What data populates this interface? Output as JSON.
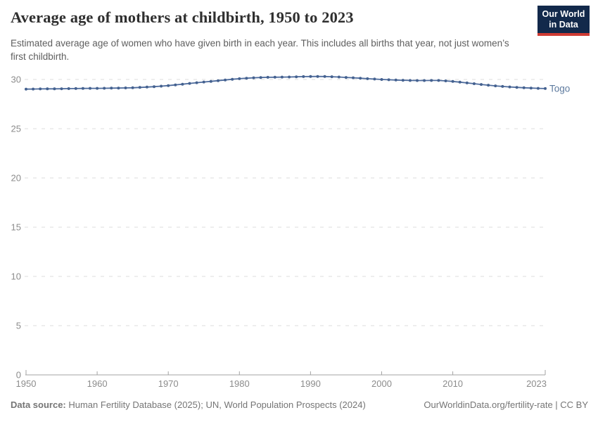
{
  "header": {
    "title": "Average age of mothers at childbirth, 1950 to 2023",
    "subtitle": "Estimated average age of women who have given birth in each year. This includes all births that year, not just women’s first childbirth.",
    "logo": {
      "line1": "Our World",
      "line2": "in Data",
      "bg_color": "#12294b",
      "accent_color": "#cf3b33"
    }
  },
  "chart_data": {
    "type": "line",
    "title": "Average age of mothers at childbirth, 1950 to 2023",
    "xlabel": "",
    "ylabel": "",
    "ylim": [
      0,
      30
    ],
    "yticks": [
      0,
      5,
      10,
      15,
      20,
      25,
      30
    ],
    "xticks": [
      1950,
      1960,
      1970,
      1980,
      1990,
      2000,
      2010,
      2023
    ],
    "grid": true,
    "legend_position": "end-of-line",
    "years": [
      1950,
      1951,
      1952,
      1953,
      1954,
      1955,
      1956,
      1957,
      1958,
      1959,
      1960,
      1961,
      1962,
      1963,
      1964,
      1965,
      1966,
      1967,
      1968,
      1969,
      1970,
      1971,
      1972,
      1973,
      1974,
      1975,
      1976,
      1977,
      1978,
      1979,
      1980,
      1981,
      1982,
      1983,
      1984,
      1985,
      1986,
      1987,
      1988,
      1989,
      1990,
      1991,
      1992,
      1993,
      1994,
      1995,
      1996,
      1997,
      1998,
      1999,
      2000,
      2001,
      2002,
      2003,
      2004,
      2005,
      2006,
      2007,
      2008,
      2009,
      2010,
      2011,
      2012,
      2013,
      2014,
      2015,
      2016,
      2017,
      2018,
      2019,
      2020,
      2021,
      2022,
      2023
    ],
    "series": [
      {
        "name": "Togo",
        "color": "#4C6A9C",
        "marker_color": "#44618f",
        "values": [
          29.02,
          29.03,
          29.04,
          29.05,
          29.05,
          29.06,
          29.07,
          29.08,
          29.09,
          29.1,
          29.1,
          29.11,
          29.12,
          29.13,
          29.14,
          29.16,
          29.19,
          29.23,
          29.27,
          29.32,
          29.38,
          29.45,
          29.52,
          29.6,
          29.67,
          29.74,
          29.81,
          29.88,
          29.95,
          30.02,
          30.08,
          30.13,
          30.17,
          30.2,
          30.22,
          30.23,
          30.24,
          30.25,
          30.27,
          30.29,
          30.3,
          30.31,
          30.3,
          30.28,
          30.25,
          30.21,
          30.17,
          30.13,
          30.08,
          30.04,
          30.0,
          29.97,
          29.94,
          29.92,
          29.9,
          29.89,
          29.89,
          29.9,
          29.9,
          29.86,
          29.8,
          29.73,
          29.65,
          29.57,
          29.49,
          29.42,
          29.35,
          29.29,
          29.24,
          29.2,
          29.16,
          29.13,
          29.1,
          29.08
        ]
      }
    ],
    "colors": {
      "grid": "#dcdcdc",
      "axis": "#a3a3a3",
      "tick_label": "#8c8c8c",
      "entity_label": "#5d7a9e"
    }
  },
  "footer": {
    "source_label": "Data source:",
    "source_text": " Human Fertility Database (2025); UN, World Population Prospects (2024)",
    "credit": "OurWorldinData.org/fertility-rate | CC BY"
  }
}
